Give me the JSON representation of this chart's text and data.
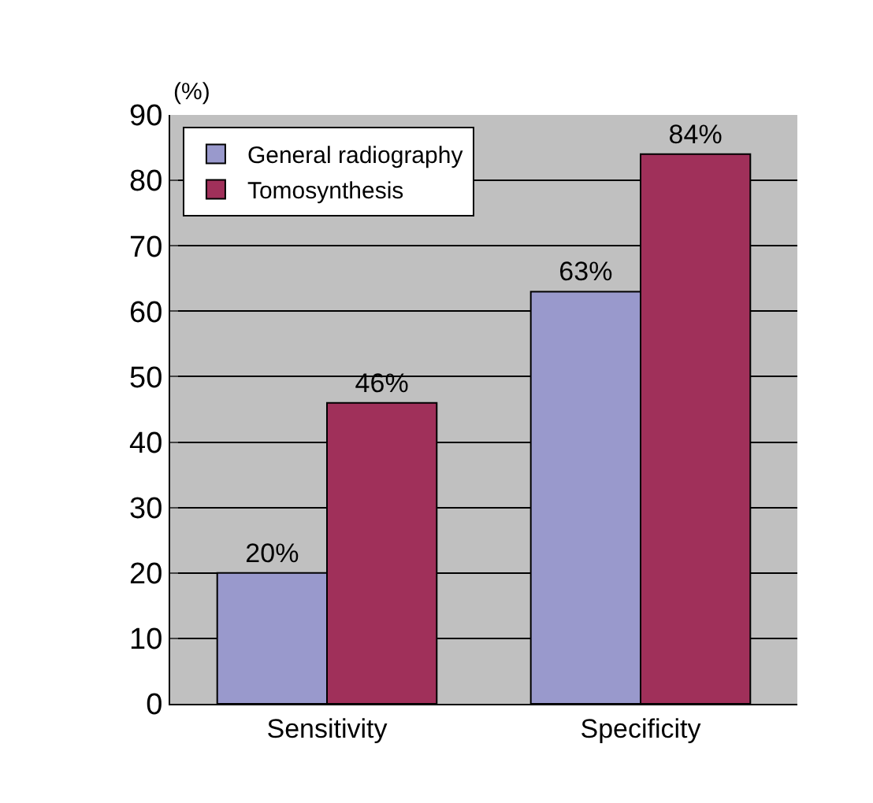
{
  "chart_data": {
    "type": "bar",
    "ylabel": "(%)",
    "categories": [
      "Sensitivity",
      "Specificity"
    ],
    "series": [
      {
        "name": "General radiography",
        "color": "#9999cc",
        "values": [
          20,
          63
        ],
        "value_labels": [
          "20%",
          "63%"
        ]
      },
      {
        "name": "Tomosynthesis",
        "color": "#a0305a",
        "values": [
          46,
          84
        ],
        "value_labels": [
          "46%",
          "84%"
        ]
      }
    ],
    "ylim": [
      0,
      90
    ],
    "yticks": [
      0,
      10,
      20,
      30,
      40,
      50,
      60,
      70,
      80,
      90
    ],
    "grid": "y",
    "legend": "top left"
  }
}
